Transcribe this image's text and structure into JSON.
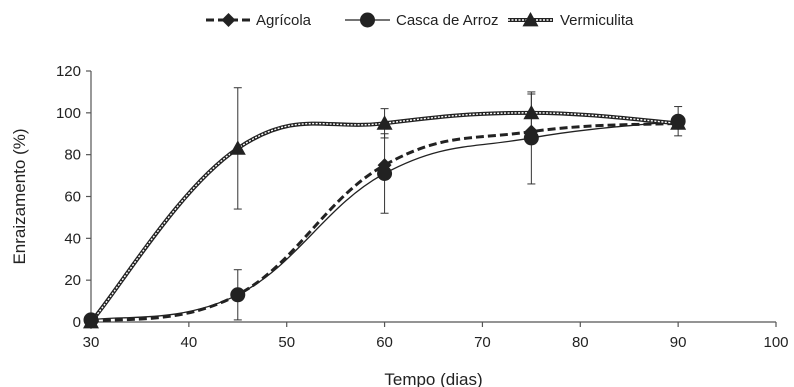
{
  "chart_data": {
    "type": "line",
    "title": "",
    "xlabel": "Tempo (dias)",
    "ylabel": "Enraizamento (%)",
    "xlim": [
      30,
      100
    ],
    "ylim": [
      0,
      120
    ],
    "xticks": [
      30,
      40,
      50,
      60,
      70,
      80,
      90,
      100
    ],
    "yticks": [
      0,
      20,
      40,
      60,
      80,
      100,
      120
    ],
    "grid": false,
    "legend_position": "top",
    "x": [
      30,
      45,
      60,
      75,
      90
    ],
    "series": [
      {
        "name": "Agrícola",
        "marker": "diamond",
        "line": "dashed",
        "color": "#222222",
        "values": [
          0,
          13,
          75,
          91,
          95
        ],
        "errors": [
          null,
          null,
          null,
          null,
          null
        ]
      },
      {
        "name": "Casca de Arroz",
        "marker": "circle",
        "line": "solid",
        "color": "#222222",
        "values": [
          1,
          13,
          71,
          88,
          96
        ],
        "errors": [
          0,
          12,
          19,
          22,
          7
        ]
      },
      {
        "name": "Vermiculita",
        "marker": "triangle",
        "line": "double",
        "color": "#222222",
        "values": [
          0,
          83,
          95,
          100,
          95
        ],
        "errors": [
          0,
          29,
          7,
          9,
          0
        ]
      }
    ]
  }
}
